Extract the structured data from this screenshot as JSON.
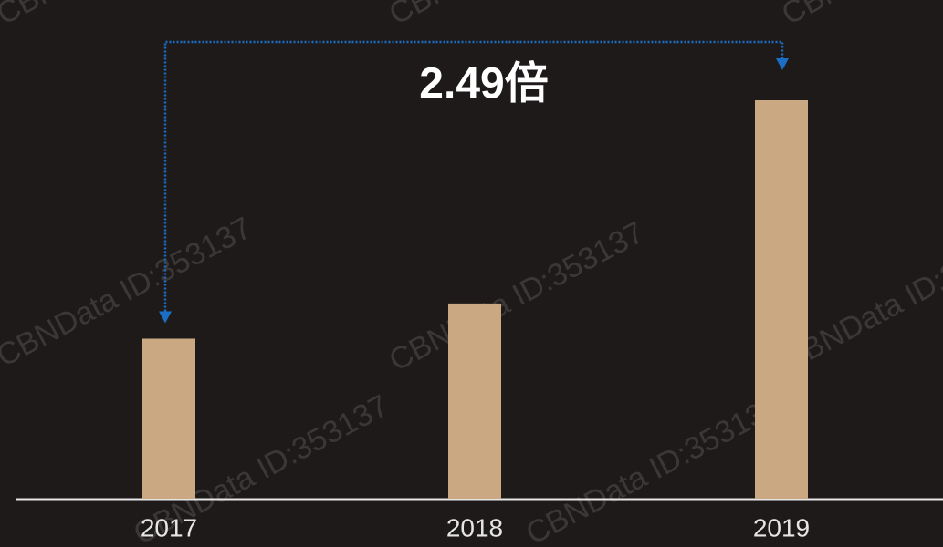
{
  "chart_data": {
    "type": "bar",
    "categories": [
      "2017",
      "2018",
      "2019"
    ],
    "values": [
      1,
      1.22,
      2.49
    ],
    "color": "#c9a882",
    "annotation": "2.49倍",
    "watermark": "CBNData ID:353137"
  }
}
